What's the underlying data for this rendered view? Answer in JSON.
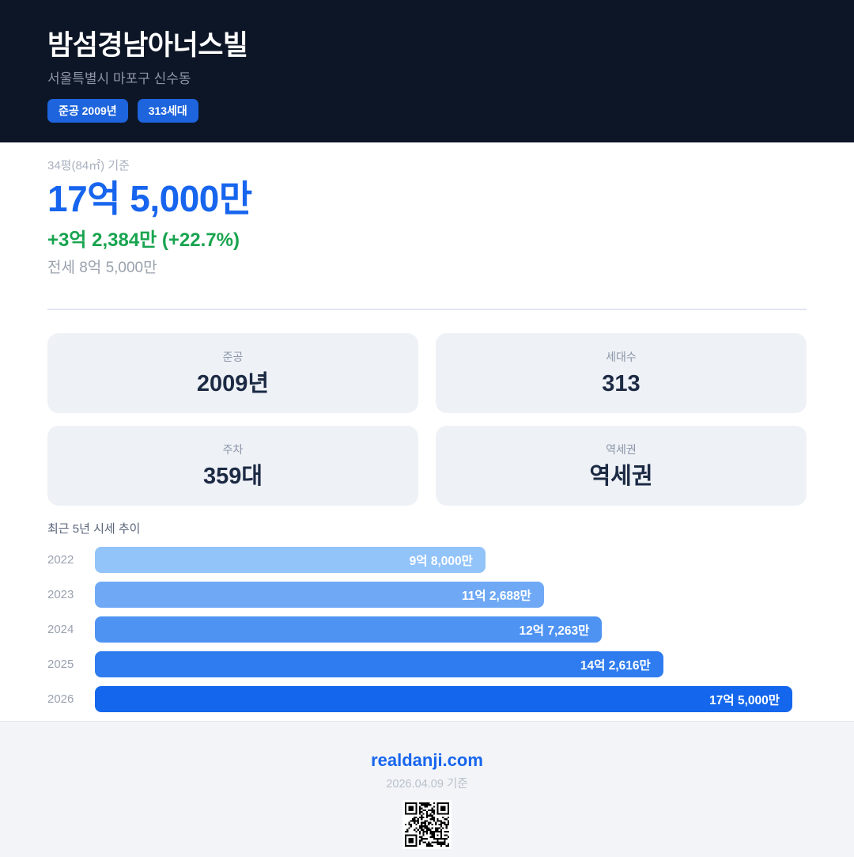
{
  "colors": {
    "header_bg": "#0d1626",
    "badge_blue": "#1d64dd",
    "accent_blue": "#1765ee",
    "positive_green": "#18a44f"
  },
  "header": {
    "title": "밤섬경남아너스빌",
    "address": "서울특별시 마포구 신수동",
    "badges": [
      "준공 2009년",
      "313세대"
    ]
  },
  "price": {
    "basis": "34평(84㎡) 기준",
    "current": "17억 5,000만",
    "change": "+3억 2,384만 (+22.7%)",
    "jeonse": "전세 8억 5,000만"
  },
  "stats": [
    {
      "label": "준공",
      "value": "2009년"
    },
    {
      "label": "세대수",
      "value": "313"
    },
    {
      "label": "주차",
      "value": "359대"
    },
    {
      "label": "역세권",
      "value": "역세권"
    }
  ],
  "chart_data": {
    "type": "bar",
    "orientation": "horizontal",
    "title": "최근 5년 시세 추이",
    "categories": [
      "2022",
      "2023",
      "2024",
      "2025",
      "2026"
    ],
    "values": [
      98000,
      112688,
      127263,
      142616,
      175000
    ],
    "unit": "만원",
    "value_labels": [
      "9억 8,000만",
      "11억 2,688만",
      "12억 7,263만",
      "14억 2,616만",
      "17억 5,000만"
    ],
    "bar_colors": [
      "#92c3f9",
      "#6fa9f6",
      "#4e93f2",
      "#2e7cef",
      "#1467ec"
    ],
    "xlim": [
      0,
      175000
    ],
    "legend": "none",
    "grid": false
  },
  "footer": {
    "site": "realdanji.com",
    "date_note": "2026.04.09 기준"
  }
}
